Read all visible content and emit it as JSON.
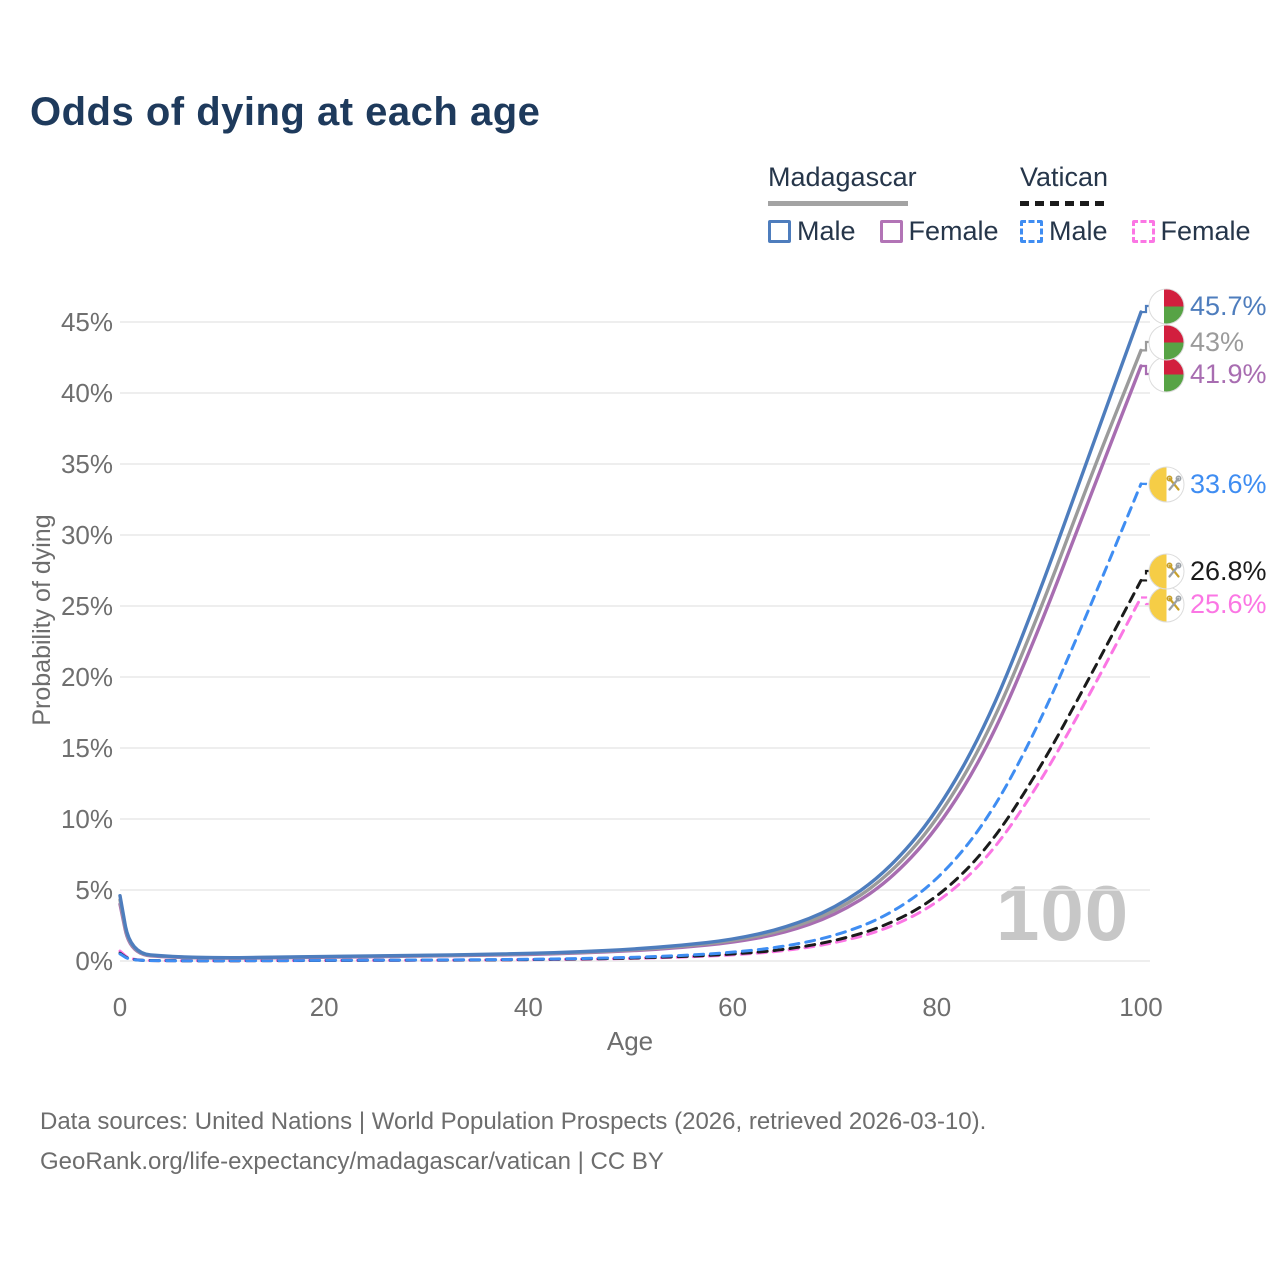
{
  "title": "Odds of dying at each age",
  "legend": {
    "groups": [
      {
        "country": "Madagascar",
        "underline_color": "#a3a3a3",
        "underline_dashed": false,
        "items": [
          {
            "label": "Male",
            "color": "#4e7dbd",
            "dashed": false
          },
          {
            "label": "Female",
            "color": "#b274b6",
            "dashed": false
          }
        ]
      },
      {
        "country": "Vatican",
        "underline_color": "#1b1b1b",
        "underline_dashed": true,
        "items": [
          {
            "label": "Male",
            "color": "#3f8df2",
            "dashed": true
          },
          {
            "label": "Female",
            "color": "#fb76e4",
            "dashed": true
          }
        ]
      }
    ]
  },
  "watermark": "100",
  "footer": {
    "line1": "Data sources: United Nations | World Population Prospects (2026, retrieved 2026-03-10).",
    "line2": "GeoRank.org/life-expectancy/madagascar/vatican | CC BY"
  },
  "chart_data": {
    "type": "line",
    "title": "Odds of dying at each age",
    "xlabel": "Age",
    "ylabel": "Probability of dying",
    "xlim": [
      0,
      100
    ],
    "ylim": [
      0,
      47
    ],
    "grid": true,
    "legend_position": "top-right",
    "xticks": [
      0,
      20,
      40,
      60,
      80,
      100
    ],
    "yticks": [
      {
        "v": 0,
        "label": "0%"
      },
      {
        "v": 5,
        "label": "5%"
      },
      {
        "v": 10,
        "label": "10%"
      },
      {
        "v": 15,
        "label": "15%"
      },
      {
        "v": 20,
        "label": "20%"
      },
      {
        "v": 25,
        "label": "25%"
      },
      {
        "v": 30,
        "label": "30%"
      },
      {
        "v": 35,
        "label": "35%"
      },
      {
        "v": 40,
        "label": "40%"
      },
      {
        "v": 45,
        "label": "45%"
      }
    ],
    "x": [
      0,
      1,
      5,
      10,
      15,
      20,
      25,
      30,
      35,
      40,
      45,
      50,
      55,
      60,
      65,
      70,
      75,
      80,
      85,
      90,
      95,
      100
    ],
    "series": [
      {
        "id": "va-female",
        "name": "Vatican Female",
        "color": "#fb76e4",
        "dashed": true,
        "flag": "vatican",
        "end_label": "25.6%",
        "end_value": 25.6,
        "values": [
          0.7,
          0.05,
          0.02,
          0.02,
          0.025,
          0.035,
          0.045,
          0.055,
          0.065,
          0.09,
          0.12,
          0.18,
          0.27,
          0.42,
          0.7,
          1.25,
          2.2,
          4.0,
          7.2,
          12.4,
          18.8,
          25.6
        ]
      },
      {
        "id": "va-both",
        "name": "Vatican",
        "color": "#1b1b1b",
        "dashed": true,
        "flag": "vatican",
        "end_label": "26.8%",
        "end_value": 26.8,
        "values": [
          0.55,
          0.045,
          0.02,
          0.02,
          0.025,
          0.04,
          0.05,
          0.06,
          0.07,
          0.1,
          0.14,
          0.2,
          0.31,
          0.48,
          0.78,
          1.4,
          2.45,
          4.4,
          7.9,
          13.4,
          20.0,
          26.8
        ]
      },
      {
        "id": "va-male",
        "name": "Vatican Male",
        "color": "#3f8df2",
        "dashed": true,
        "flag": "vatican",
        "end_label": "33.6%",
        "end_value": 33.6,
        "values": [
          0.5,
          0.04,
          0.02,
          0.02,
          0.03,
          0.05,
          0.06,
          0.07,
          0.09,
          0.12,
          0.17,
          0.25,
          0.38,
          0.6,
          1.0,
          1.75,
          3.1,
          5.6,
          9.9,
          16.6,
          24.9,
          33.6
        ]
      },
      {
        "id": "mg-female",
        "name": "Madagascar Female",
        "color": "#a86db1",
        "dashed": false,
        "flag": "madagascar",
        "end_label": "41.9%",
        "end_value": 41.9,
        "values": [
          4.0,
          0.48,
          0.26,
          0.19,
          0.22,
          0.27,
          0.31,
          0.35,
          0.4,
          0.46,
          0.56,
          0.71,
          0.94,
          1.3,
          1.95,
          3.2,
          5.4,
          9.2,
          15.0,
          23.3,
          32.7,
          41.9
        ]
      },
      {
        "id": "mg-both",
        "name": "Madagascar",
        "color": "#9b9b9b",
        "dashed": false,
        "flag": "madagascar",
        "end_label": "43%",
        "end_value": 43.0,
        "values": [
          4.3,
          0.52,
          0.28,
          0.21,
          0.24,
          0.3,
          0.34,
          0.38,
          0.43,
          0.5,
          0.6,
          0.77,
          1.02,
          1.4,
          2.12,
          3.45,
          5.8,
          9.8,
          15.9,
          24.4,
          34.0,
          43.0
        ]
      },
      {
        "id": "mg-male",
        "name": "Madagascar Male",
        "color": "#4e7dbd",
        "dashed": false,
        "flag": "madagascar",
        "end_label": "45.7%",
        "end_value": 45.7,
        "values": [
          4.6,
          0.55,
          0.3,
          0.22,
          0.26,
          0.32,
          0.36,
          0.4,
          0.46,
          0.53,
          0.64,
          0.82,
          1.1,
          1.5,
          2.3,
          3.7,
          6.2,
          10.4,
          16.8,
          25.8,
          35.8,
          45.7
        ]
      }
    ]
  }
}
